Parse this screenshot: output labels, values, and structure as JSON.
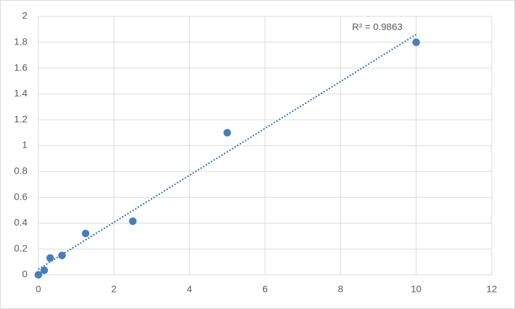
{
  "chart_data": {
    "type": "scatter",
    "x": [
      0,
      0.156,
      0.3125,
      0.625,
      1.25,
      2.5,
      5,
      10
    ],
    "values": [
      0,
      0.035,
      0.13,
      0.15,
      0.32,
      0.415,
      1.1,
      1.8
    ],
    "color": "#4a7ebb",
    "trendline": {
      "type": "linear",
      "color": "#2e75b6",
      "label": "R² = 0.9863"
    },
    "xlim": [
      0,
      12
    ],
    "xticks": [
      0,
      2,
      4,
      6,
      8,
      10,
      12
    ],
    "ylim": [
      0,
      2
    ],
    "yticks": [
      0,
      0.2,
      0.4,
      0.6,
      0.8,
      1,
      1.2,
      1.4,
      1.6,
      1.8,
      2
    ],
    "grid": true
  }
}
